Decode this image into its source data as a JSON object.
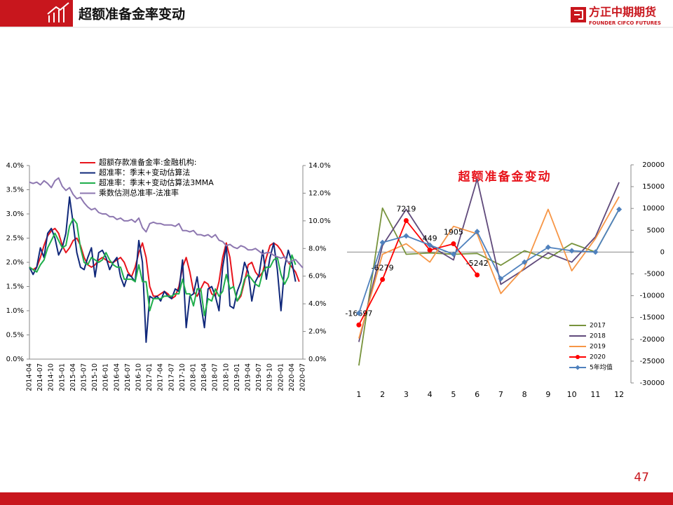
{
  "header": {
    "title": "超额准备金率变动",
    "logo": "方正中期期货",
    "logo_sub": "FOUNDER CIFCO FUTURES"
  },
  "page_number": "47",
  "chart_data": [
    {
      "type": "line",
      "legend": "upper left",
      "categories": [
        "2014-04",
        null,
        null,
        "2014-07",
        null,
        null,
        "2014-10",
        null,
        null,
        "2015-01",
        null,
        null,
        "2015-04",
        null,
        null,
        "2015-07",
        null,
        null,
        "2015-10",
        null,
        null,
        "2016-01",
        null,
        null,
        "2016-04",
        null,
        null,
        "2016-07",
        null,
        null,
        "2016-10",
        null,
        null,
        "2017-01",
        null,
        null,
        "2017-04",
        null,
        null,
        "2017-07",
        null,
        null,
        "2017-10",
        null,
        null,
        "2018-01",
        null,
        null,
        "2018-04",
        null,
        null,
        "2018-07",
        null,
        null,
        "2018-10",
        null,
        null,
        "2019-01",
        null,
        null,
        "2019-04",
        null,
        null,
        "2019-07",
        null,
        null,
        "2019-10",
        null,
        null,
        "2020-01",
        null,
        null,
        "2020-04",
        null,
        null,
        "2020-07"
      ],
      "ylim": [
        0,
        4
      ],
      "yticks": [
        {
          "value": 0,
          "label": "0.0%"
        },
        {
          "value": 0.5,
          "label": "0.5%"
        },
        {
          "value": 1,
          "label": "1.0%"
        },
        {
          "value": 1.5,
          "label": "1.5%"
        },
        {
          "value": 2,
          "label": "2.0%"
        },
        {
          "value": 2.5,
          "label": "2.5%"
        },
        {
          "value": 3,
          "label": "3.0%"
        },
        {
          "value": 3.5,
          "label": "3.5%"
        },
        {
          "value": 4,
          "label": "4.0%"
        }
      ],
      "y2lim": [
        0,
        14
      ],
      "y2ticks": [
        {
          "value": 0,
          "label": "0.0%"
        },
        {
          "value": 2,
          "label": "2.0%"
        },
        {
          "value": 4,
          "label": "4.0%"
        },
        {
          "value": 6,
          "label": "6.0%"
        },
        {
          "value": 8,
          "label": "8.0%"
        },
        {
          "value": 10,
          "label": "10.0%"
        },
        {
          "value": 12,
          "label": "12.0%"
        },
        {
          "value": 14,
          "label": "14.0%"
        }
      ],
      "series": [
        {
          "name": "超额存款准备金率:金融机构:",
          "color": "#e8141c",
          "values": [
            1.9,
            1.85,
            1.9,
            2.1,
            2.35,
            2.55,
            2.65,
            2.7,
            2.6,
            2.35,
            2.2,
            2.3,
            2.45,
            2.5,
            2.35,
            2.1,
            1.95,
            1.9,
            1.95,
            2.05,
            2.1,
            2.05,
            2.0,
            2.0,
            2.05,
            2.1,
            2.0,
            1.8,
            1.7,
            1.9,
            2.2,
            2.4,
            2.1,
            1.5,
            1.3,
            1.3,
            1.35,
            1.4,
            1.35,
            1.25,
            1.3,
            1.5,
            1.9,
            2.1,
            1.8,
            1.4,
            1.3,
            1.45,
            1.6,
            1.55,
            1.35,
            1.3,
            1.6,
            2.1,
            2.4,
            2.1,
            1.5,
            1.2,
            1.3,
            1.6,
            1.95,
            2.0,
            1.8,
            1.7,
            1.8,
            2.1,
            2.35,
            2.4,
            2.35,
            2.25,
            2.1,
            2.0,
            1.9,
            1.8,
            1.6,
            null
          ]
        },
        {
          "name": "超准率：季末+变动估算法",
          "color": "#10287a",
          "values": [
            1.9,
            1.75,
            1.9,
            2.3,
            2.1,
            2.6,
            2.7,
            2.5,
            2.15,
            2.3,
            2.6,
            3.35,
            2.8,
            2.2,
            1.9,
            1.85,
            2.1,
            2.3,
            1.7,
            2.2,
            2.25,
            2.1,
            1.85,
            2.0,
            2.1,
            1.7,
            1.5,
            1.75,
            1.7,
            1.6,
            2.45,
            2.0,
            0.35,
            1.3,
            1.25,
            1.3,
            1.2,
            1.4,
            1.3,
            1.25,
            1.45,
            1.4,
            2.05,
            0.65,
            1.3,
            1.35,
            1.7,
            1.15,
            0.65,
            1.45,
            1.5,
            1.3,
            1.0,
            1.9,
            2.35,
            1.1,
            1.05,
            1.4,
            1.6,
            2.0,
            1.8,
            1.2,
            1.6,
            1.75,
            2.25,
            1.65,
            2.1,
            2.4,
            1.85,
            1.0,
            1.9,
            2.25,
            2.0,
            1.6,
            null,
            null
          ]
        },
        {
          "name": "超准率：季末+变动估算法3MMA",
          "color": "#1fae4b",
          "values": [
            1.9,
            1.85,
            1.8,
            1.95,
            2.05,
            2.3,
            2.45,
            2.6,
            2.45,
            2.3,
            2.35,
            2.75,
            2.9,
            2.8,
            2.3,
            2.0,
            1.95,
            2.1,
            2.05,
            2.0,
            2.05,
            2.2,
            2.05,
            1.95,
            1.9,
            1.9,
            1.65,
            1.65,
            1.65,
            1.6,
            1.95,
            1.6,
            1.6,
            1.0,
            1.25,
            1.25,
            1.25,
            1.3,
            1.3,
            1.3,
            1.35,
            1.35,
            1.65,
            1.35,
            1.35,
            1.1,
            1.45,
            1.45,
            0.9,
            1.25,
            1.2,
            1.45,
            1.3,
            1.4,
            1.75,
            1.45,
            1.5,
            1.2,
            1.35,
            1.65,
            1.75,
            1.65,
            1.55,
            1.5,
            1.8,
            1.9,
            1.9,
            2.05,
            2.1,
            1.75,
            1.55,
            1.7,
            2.15,
            1.95,
            null,
            null
          ]
        },
        {
          "name": "乘数估测总准率-法准率",
          "color": "#8d77b0",
          "axis": "y2",
          "values": [
            12.8,
            12.7,
            12.8,
            12.6,
            12.9,
            12.7,
            12.4,
            12.9,
            13.1,
            12.5,
            12.2,
            12.4,
            11.9,
            11.6,
            11.7,
            11.3,
            11.0,
            10.8,
            10.9,
            10.6,
            10.5,
            10.5,
            10.3,
            10.3,
            10.1,
            10.2,
            10.0,
            10.0,
            10.1,
            9.9,
            10.2,
            9.5,
            9.2,
            9.8,
            9.9,
            9.8,
            9.8,
            9.7,
            9.7,
            9.7,
            9.6,
            9.8,
            9.3,
            9.3,
            9.2,
            9.3,
            9.0,
            9.0,
            8.9,
            9.0,
            8.8,
            9.0,
            8.6,
            8.5,
            8.2,
            8.3,
            8.1,
            8.0,
            8.2,
            8.1,
            7.9,
            7.9,
            8.0,
            7.8,
            7.6,
            7.7,
            7.7,
            7.5,
            7.4,
            7.3,
            7.4,
            7.0,
            7.1,
            7.2,
            6.9,
            6.6
          ]
        }
      ]
    },
    {
      "type": "line",
      "title": "超额准备金变动",
      "legend": "lower right",
      "categories": [
        "1",
        "2",
        "3",
        "4",
        "5",
        "6",
        "7",
        "8",
        "9",
        "10",
        "11",
        "12"
      ],
      "ylim": [
        -30000,
        20000
      ],
      "yticks": [
        -30000,
        -25000,
        -20000,
        -15000,
        -10000,
        -5000,
        0,
        5000,
        10000,
        15000,
        20000
      ],
      "series": [
        {
          "name": "2017",
          "color": "#77933c",
          "values": [
            -26000,
            10100,
            -500,
            -200,
            -500,
            -300,
            -3000,
            300,
            -1500,
            2000,
            0,
            9800
          ]
        },
        {
          "name": "2018",
          "color": "#604a7b",
          "values": [
            -20600,
            1500,
            9800,
            1500,
            -1800,
            16700,
            -7400,
            -3900,
            -200,
            -2300,
            3500,
            16000
          ]
        },
        {
          "name": "2019",
          "color": "#f79646",
          "values": [
            -19800,
            -500,
            1900,
            -2300,
            5900,
            4200,
            -9500,
            -3500,
            9800,
            -4300,
            3100,
            12700
          ]
        },
        {
          "name": "2020",
          "color": "#ff0000",
          "marker": "circle",
          "data_labels": true,
          "values": [
            -16697,
            -6279,
            7219,
            449,
            1905,
            -5242,
            null,
            null,
            null,
            null,
            null,
            null
          ]
        },
        {
          "name": "5年均值",
          "color": "#4f81bd",
          "marker": "diamond",
          "values": [
            -14000,
            2200,
            3700,
            1600,
            -500,
            4700,
            -6100,
            -2300,
            1100,
            300,
            0,
            9800
          ]
        }
      ]
    }
  ]
}
